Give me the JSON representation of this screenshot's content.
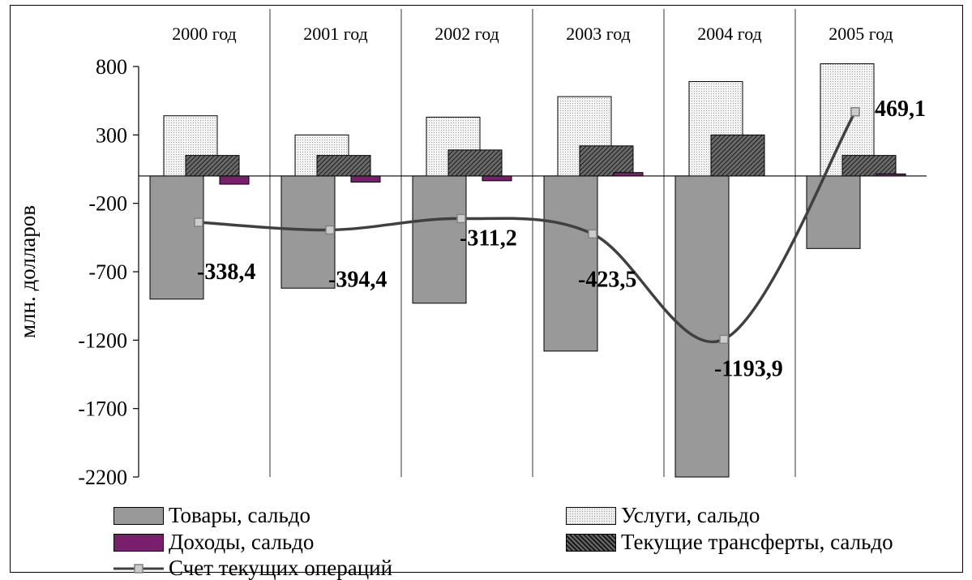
{
  "chart_data": {
    "type": "bar",
    "ylabel": "млн. долларов",
    "ylim": [
      -2200,
      800
    ],
    "yticks": [
      800,
      300,
      -200,
      -700,
      -1200,
      -1700,
      -2200
    ],
    "ytick_labels": [
      "800",
      "300",
      "-200",
      "-700",
      "-1200",
      "-1700",
      "-2200"
    ],
    "categories": [
      "2000 год",
      "2001 год",
      "2002 год",
      "2003 год",
      "2004 год",
      "2005 год"
    ],
    "series": [
      {
        "name": "Товары, сальдо",
        "type": "bar",
        "color": "#999999",
        "pattern": "solid",
        "values": [
          -900,
          -820,
          -930,
          -1280,
          -2200,
          -530
        ]
      },
      {
        "name": "Услуги, сальдо",
        "type": "bar",
        "color": "#eeeeee",
        "pattern": "dots",
        "values": [
          440,
          300,
          430,
          580,
          690,
          820
        ]
      },
      {
        "name": "Доходы, сальдо",
        "type": "bar",
        "color": "#7a1f6e",
        "pattern": "solid",
        "values": [
          -60,
          -45,
          -35,
          25,
          0,
          15
        ]
      },
      {
        "name": "Текущие трансферты, сальдо",
        "type": "bar",
        "color": "#555555",
        "pattern": "hatch",
        "values": [
          150,
          150,
          190,
          220,
          300,
          150
        ]
      },
      {
        "name": "Счет текущих операций",
        "type": "line",
        "color": "#404040",
        "values": [
          -338.4,
          -394.4,
          -311.2,
          -423.5,
          -1193.9,
          469.1
        ],
        "labels": [
          "-338,4",
          "-394,4",
          "-311,2",
          "-423,5",
          "-1193,9",
          "469,1"
        ]
      }
    ],
    "grid": "vertical category separators",
    "legend_position": "bottom"
  }
}
